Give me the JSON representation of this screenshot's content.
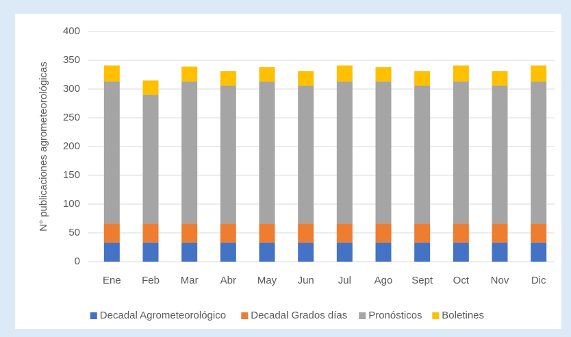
{
  "chart_data": {
    "type": "bar",
    "stacked": true,
    "y_label": "N° publicaciones agrometeorológicas",
    "categories": [
      "Ene",
      "Feb",
      "Mar",
      "Abr",
      "May",
      "Jun",
      "Jul",
      "Ago",
      "Sept",
      "Oct",
      "Nov",
      "Dic"
    ],
    "series": [
      {
        "name": "Decadal Agrometeorológico",
        "color": "#4472c4",
        "values": [
          33,
          33,
          33,
          33,
          33,
          33,
          33,
          33,
          33,
          33,
          33,
          33
        ]
      },
      {
        "name": "Decadal Grados días",
        "color": "#ed7d31",
        "values": [
          33,
          33,
          33,
          33,
          33,
          33,
          33,
          33,
          33,
          33,
          33,
          33
        ]
      },
      {
        "name": "Pronósticos",
        "color": "#a5a5a5",
        "values": [
          247,
          224,
          247,
          240,
          247,
          240,
          247,
          247,
          240,
          247,
          240,
          247
        ]
      },
      {
        "name": "Boletines",
        "color": "#ffc000",
        "values": [
          28,
          25,
          26,
          25,
          25,
          25,
          28,
          25,
          25,
          28,
          25,
          28
        ]
      }
    ],
    "ylim": [
      0,
      400
    ],
    "yticks": [
      0,
      50,
      100,
      150,
      200,
      250,
      300,
      350,
      400
    ],
    "grid": true,
    "legend": "bottom"
  }
}
